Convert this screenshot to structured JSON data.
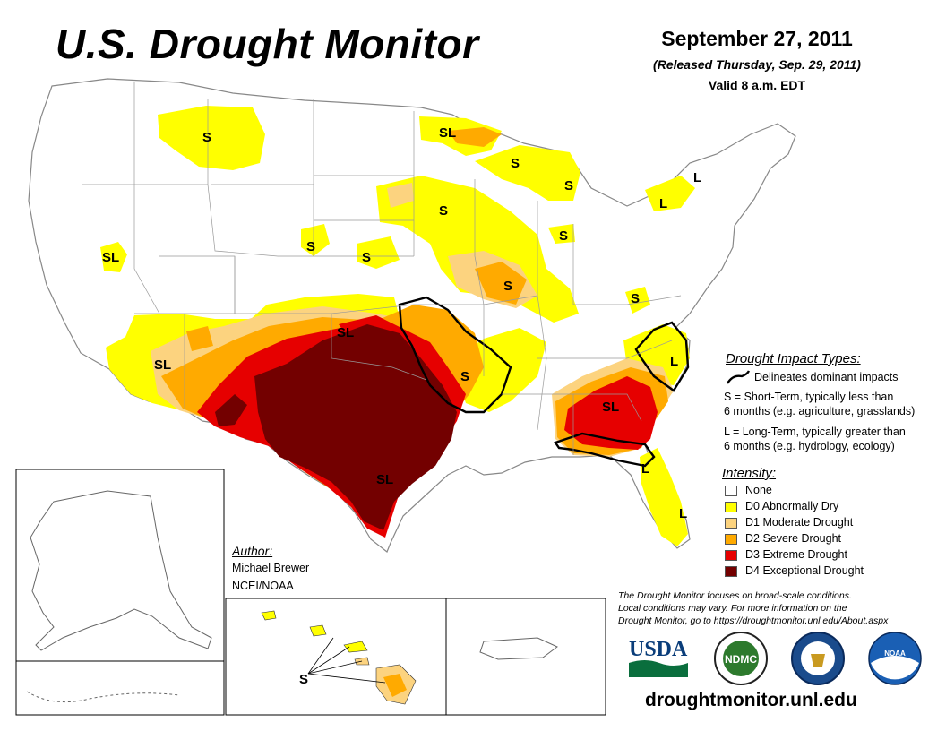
{
  "header": {
    "title": "U.S. Drought Monitor",
    "date": "September 27, 2011",
    "released": "(Released Thursday, Sep. 29, 2011)",
    "valid": "Valid 8 a.m. EDT"
  },
  "impact_legend": {
    "title": "Drought Impact Types:",
    "line_label": "Delineates dominant impacts",
    "s_desc_1": "S = Short-Term, typically less than",
    "s_desc_2": "6 months (e.g. agriculture, grasslands)",
    "l_desc_1": "L = Long-Term, typically greater than",
    "l_desc_2": "6 months (e.g. hydrology, ecology)"
  },
  "intensity_legend": {
    "title": "Intensity:",
    "items": [
      {
        "label": "None",
        "color": "#ffffff"
      },
      {
        "label": "D0 Abnormally Dry",
        "color": "#ffff00"
      },
      {
        "label": "D1 Moderate Drought",
        "color": "#fcd37f"
      },
      {
        "label": "D2 Severe Drought",
        "color": "#ffaa00"
      },
      {
        "label": "D3 Extreme Drought",
        "color": "#e60000"
      },
      {
        "label": "D4 Exceptional Drought",
        "color": "#730000"
      }
    ]
  },
  "author": {
    "title": "Author:",
    "name": "Michael Brewer",
    "org": "NCEI/NOAA"
  },
  "footer": {
    "note_1": "The Drought Monitor focuses on broad-scale conditions.",
    "note_2": "Local conditions may vary. For more information on the",
    "note_3": "Drought Monitor, go to https://droughtmonitor.unl.edu/About.aspx",
    "url": "droughtmonitor.unl.edu",
    "logo_usda": "USDA",
    "logo_ndmc": "NDMC",
    "logo_noaa": "NOAA"
  },
  "map_labels": {
    "montana": "S",
    "minn_north": "SL",
    "upper_mich": "S",
    "nevada": "SL",
    "wyoming": "S",
    "nebraska": "S",
    "iowa_n": "S",
    "michigan_w": "S",
    "michigan_s": "S",
    "ny_l": "L",
    "ny_l2": "L",
    "illinois": "S",
    "virginia": "S",
    "oklahoma": "SL",
    "arizona": "SL",
    "arkansas": "S",
    "nc": "L",
    "georgia": "SL",
    "fl_panhandle": "L",
    "fl_south": "L",
    "texas": "SL",
    "hawaii": "S"
  },
  "colors": {
    "none": "#ffffff",
    "d0": "#ffff00",
    "d1": "#fcd37f",
    "d2": "#ffaa00",
    "d3": "#e60000",
    "d4": "#730000",
    "water": "#4da6ff",
    "border": "#999999"
  }
}
